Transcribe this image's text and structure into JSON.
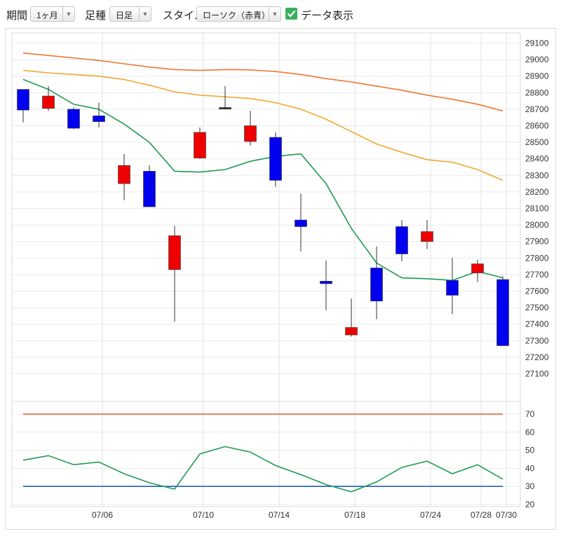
{
  "toolbar": {
    "period_label": "期間",
    "period_value": "1ヶ月",
    "candle_label": "足種",
    "candle_value": "日足",
    "style_label": "スタイル",
    "style_value": "ローソク（赤青）",
    "data_display_label": "データ表示",
    "data_display_checked": true
  },
  "colors": {
    "up_candle": "#ee0000",
    "down_candle": "#0000ee",
    "ma_short": "#1f9a52",
    "ma_mid": "#f0a830",
    "ma_long": "#ee7733",
    "rsi_line": "#1f9a52",
    "rsi_upper": "#e05a28",
    "rsi_lower": "#1e60c0",
    "grid": "#d9d9d9"
  },
  "chart_data": [
    {
      "type": "candlestick",
      "title": "",
      "x_tick_labels": [
        "07/06",
        "07/10",
        "07/14",
        "07/18",
        "07/24",
        "07/28",
        "07/30"
      ],
      "ylim": [
        27000,
        29200
      ],
      "y_ticks": [
        27100,
        27200,
        27300,
        27400,
        27500,
        27600,
        27700,
        27800,
        27900,
        28000,
        28100,
        28200,
        28300,
        28400,
        28500,
        28600,
        28700,
        28800,
        28900,
        29000,
        29100
      ],
      "candles": [
        {
          "open": 28820,
          "high": 28820,
          "low": 28620,
          "close": 28695
        },
        {
          "open": 28705,
          "high": 28840,
          "low": 28690,
          "close": 28780
        },
        {
          "open": 28700,
          "high": 28710,
          "low": 28580,
          "close": 28585
        },
        {
          "open": 28660,
          "high": 28740,
          "low": 28590,
          "close": 28625
        },
        {
          "open": 28250,
          "high": 28430,
          "low": 28150,
          "close": 28360
        },
        {
          "open": 28325,
          "high": 28360,
          "low": 28110,
          "close": 28110
        },
        {
          "open": 27730,
          "high": 27995,
          "low": 27415,
          "close": 27935
        },
        {
          "open": 28405,
          "high": 28590,
          "low": 28400,
          "close": 28560
        },
        {
          "open": 28710,
          "high": 28840,
          "low": 28700,
          "close": 28705
        },
        {
          "open": 28505,
          "high": 28690,
          "low": 28480,
          "close": 28600
        },
        {
          "open": 28530,
          "high": 28560,
          "low": 28230,
          "close": 28270
        },
        {
          "open": 28030,
          "high": 28190,
          "low": 27840,
          "close": 27990
        },
        {
          "open": 27660,
          "high": 27785,
          "low": 27485,
          "close": 27645
        },
        {
          "open": 27335,
          "high": 27555,
          "low": 27325,
          "close": 27380
        },
        {
          "open": 27740,
          "high": 27870,
          "low": 27430,
          "close": 27540
        },
        {
          "open": 27990,
          "high": 28030,
          "low": 27780,
          "close": 27825
        },
        {
          "open": 27900,
          "high": 28030,
          "low": 27855,
          "close": 27960
        },
        {
          "open": 27665,
          "high": 27800,
          "low": 27460,
          "close": 27575
        },
        {
          "open": 27710,
          "high": 27790,
          "low": 27655,
          "close": 27765
        },
        {
          "open": 27670,
          "high": 27690,
          "low": 27270,
          "close": 27270
        }
      ],
      "moving_averages": [
        {
          "values": [
            28880,
            28820,
            28730,
            28700,
            28610,
            28500,
            28325,
            28320,
            28335,
            28385,
            28415,
            28430,
            28250,
            27980,
            27770,
            27680,
            27675,
            27665,
            27720,
            27680
          ]
        },
        {
          "values": [
            28935,
            28920,
            28910,
            28900,
            28880,
            28845,
            28805,
            28785,
            28775,
            28765,
            28740,
            28700,
            28640,
            28565,
            28490,
            28440,
            28395,
            28380,
            28335,
            28270
          ]
        },
        {
          "values": [
            29040,
            29025,
            29010,
            28995,
            28975,
            28955,
            28940,
            28935,
            28940,
            28938,
            28928,
            28910,
            28885,
            28865,
            28840,
            28815,
            28785,
            28760,
            28730,
            28690
          ]
        }
      ]
    },
    {
      "type": "line",
      "title": "",
      "ylim": [
        20,
        80
      ],
      "y_ticks": [
        20,
        30,
        40,
        50,
        60,
        70
      ],
      "values": [
        44.5,
        47,
        42,
        43.5,
        37,
        32,
        28.5,
        48,
        52,
        49,
        41.5,
        36.5,
        31,
        27,
        32.5,
        40.5,
        44,
        37,
        42,
        34
      ],
      "reference_lines": [
        70,
        30
      ]
    }
  ]
}
